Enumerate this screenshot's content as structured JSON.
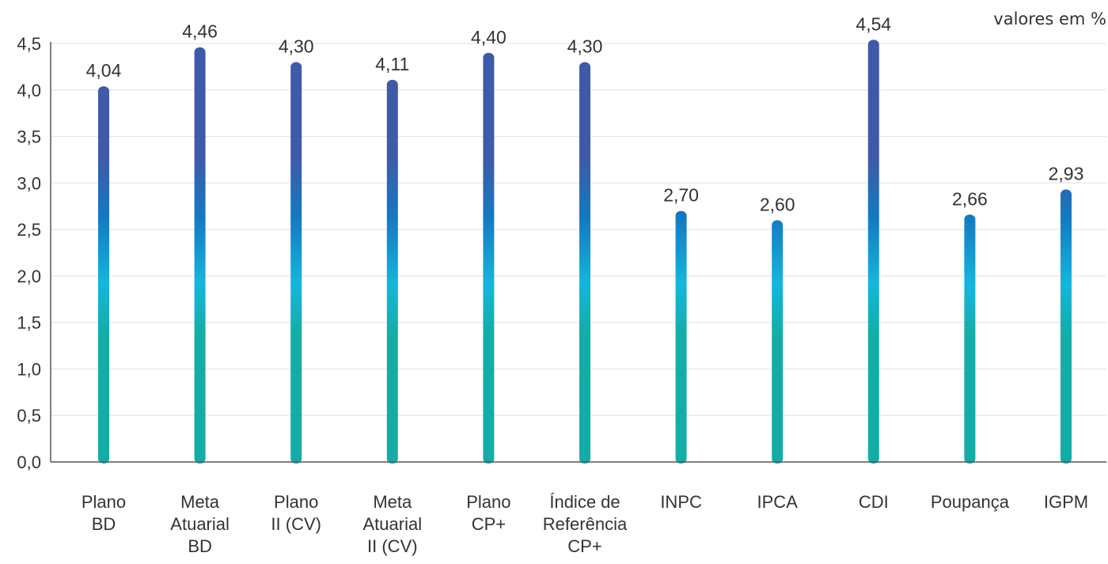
{
  "chart_data": {
    "type": "bar",
    "title": "",
    "units_note": "valores em %",
    "xlabel": "",
    "ylabel": "",
    "ylim": [
      0,
      4.5
    ],
    "yticks": [
      "0,0",
      "0,5",
      "1,0",
      "1,5",
      "2,0",
      "2,5",
      "3,0",
      "3,5",
      "4,0",
      "4,5"
    ],
    "grid": true,
    "categories": [
      [
        "Plano",
        "BD"
      ],
      [
        "Meta",
        "Atuarial",
        "BD"
      ],
      [
        "Plano",
        "II (CV)"
      ],
      [
        "Meta",
        "Atuarial",
        "II (CV)"
      ],
      [
        "Plano",
        "CP+"
      ],
      [
        "Índice de",
        "Referência",
        "CP+"
      ],
      [
        "INPC"
      ],
      [
        "IPCA"
      ],
      [
        "CDI"
      ],
      [
        "Poupança"
      ],
      [
        "IGPM"
      ]
    ],
    "values": [
      4.04,
      4.46,
      4.3,
      4.11,
      4.4,
      4.3,
      2.7,
      2.6,
      4.54,
      2.66,
      2.93
    ],
    "value_labels": [
      "4,04",
      "4,46",
      "4,30",
      "4,11",
      "4,40",
      "4,30",
      "2,70",
      "2,60",
      "4,54",
      "2,66",
      "2,93"
    ],
    "colors": {
      "bar_top": "#3f5aa8",
      "bar_mid": "#1479c2",
      "bar_light": "#15b6dc",
      "bar_bottom": "#14ada6",
      "grid": "#e6e6e6",
      "axis": "#555555"
    }
  }
}
